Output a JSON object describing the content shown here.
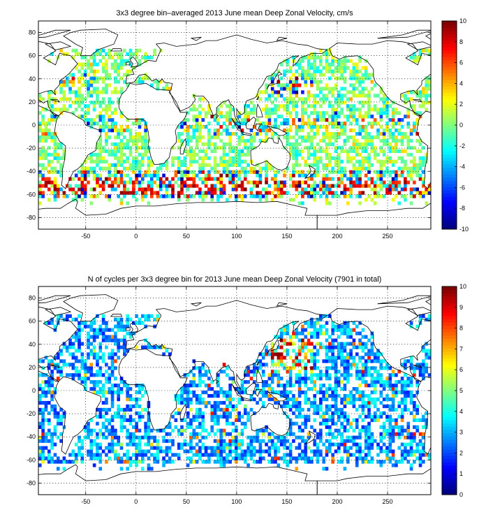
{
  "chart_data": [
    {
      "type": "heatmap",
      "title": "3x3 degree bin–averaged 2013 June mean Deep Zonal Velocity, cm/s",
      "xlabel": "",
      "ylabel": "",
      "xlim": [
        -97,
        293
      ],
      "ylim": [
        -90,
        90
      ],
      "xticks": [
        -50,
        0,
        50,
        100,
        150,
        200,
        250
      ],
      "yticks": [
        -80,
        -60,
        -40,
        -20,
        0,
        20,
        40,
        60,
        80
      ],
      "grid": true,
      "bin_size_deg": 3,
      "colorbar": {
        "min": -10,
        "max": 10,
        "ticks": [
          -10,
          -8,
          -6,
          -4,
          -2,
          0,
          2,
          4,
          6,
          8,
          10
        ],
        "colormap": "jet"
      },
      "field_description": "Binned velocities scattered over global oceans; strong positive and negative values concentrated along the Antarctic Circumpolar Current near 45–60S and the Kuroshio region near 30–40N.",
      "sample_bins": [
        {
          "lon": -76,
          "lat": -57,
          "value": 9
        },
        {
          "lon": -64,
          "lat": -57,
          "value": 8
        },
        {
          "lon": -52,
          "lat": -42,
          "value": 6
        },
        {
          "lon": 26,
          "lat": -54,
          "value": -8
        },
        {
          "lon": 110,
          "lat": -48,
          "value": 8
        },
        {
          "lon": 143,
          "lat": 36,
          "value": 9
        },
        {
          "lon": 164,
          "lat": 3,
          "value": -9
        },
        {
          "lon": 200,
          "lat": 9,
          "value": -8
        },
        {
          "lon": 188,
          "lat": -54,
          "value": 9
        }
      ]
    },
    {
      "type": "heatmap",
      "title": "N of cycles per 3x3 degree bin for 2013 June mean Deep Zonal Velocity (7901 in total)",
      "xlabel": "",
      "ylabel": "",
      "xlim": [
        -97,
        293
      ],
      "ylim": [
        -90,
        90
      ],
      "xticks": [
        -50,
        0,
        50,
        100,
        150,
        200,
        250
      ],
      "yticks": [
        -80,
        -60,
        -40,
        -20,
        0,
        20,
        40,
        60,
        80
      ],
      "grid": true,
      "bin_size_deg": 3,
      "total_cycles": 7901,
      "colorbar": {
        "min": 0,
        "max": 10,
        "ticks": [
          0,
          1,
          2,
          3,
          4,
          5,
          6,
          7,
          8,
          9,
          10
        ],
        "colormap": "jet"
      },
      "field_description": "Cycle counts per bin, mostly 1–4; highest counts (8–10) east of Japan near 140–160E, 20–40N.",
      "sample_bins": [
        {
          "lon": 143,
          "lat": 30,
          "value": 10
        },
        {
          "lon": 152,
          "lat": 39,
          "value": 9
        },
        {
          "lon": 158,
          "lat": 24,
          "value": 8
        },
        {
          "lon": 20,
          "lat": -45,
          "value": 2
        },
        {
          "lon": 230,
          "lat": -40,
          "value": 4
        },
        {
          "lon": -40,
          "lat": 50,
          "value": 3
        },
        {
          "lon": 89,
          "lat": 21,
          "value": 9
        }
      ]
    }
  ]
}
